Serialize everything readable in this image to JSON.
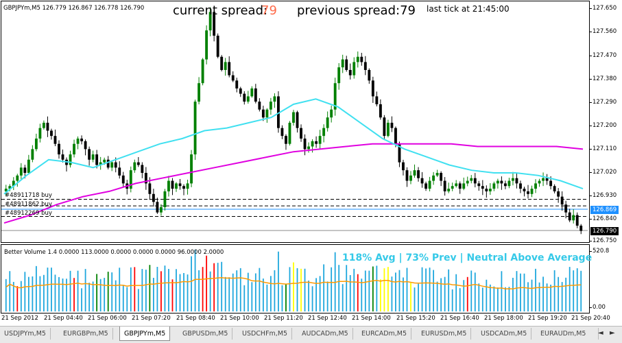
{
  "chart_header": {
    "symbol_line": "GBPJPYm,M5  126.779 126.867 126.778 126.790"
  },
  "spread": {
    "current_label": "current spread:",
    "current_value": "79",
    "previous_label": "previous spread:79",
    "last_tick": "last tick at 21:45:00"
  },
  "orders": [
    {
      "label": "#48911718 buy",
      "price": 126.91
    },
    {
      "label": "#48911862 buy",
      "price": 126.885
    },
    {
      "label": "#48912269 buy",
      "price": 126.845
    }
  ],
  "price_axis": {
    "ticks": [
      "127.650",
      "127.560",
      "127.470",
      "127.380",
      "127.290",
      "127.200",
      "127.110",
      "127.020",
      "126.930",
      "126.840",
      "126.750"
    ],
    "ask_box": "126.869",
    "bid_box": "126.790",
    "ask_color": "#1e90ff",
    "bid_color": "#000000"
  },
  "volume_panel": {
    "title": "Better Volume 1.4 0.0000 113.0000 0.0000 0.0000 0.0000 96.0000 2.0000",
    "stats": "118% Avg | 73% Prev | Neutral Above Average",
    "axis_top": "520.8",
    "axis_bottom": "0.00"
  },
  "time_axis": {
    "labels": [
      "21 Sep 2012",
      "21 Sep 04:40",
      "21 Sep 06:00",
      "21 Sep 07:20",
      "21 Sep 08:40",
      "21 Sep 10:00",
      "21 Sep 11:20",
      "21 Sep 12:40",
      "21 Sep 14:00",
      "21 Sep 15:20",
      "21 Sep 16:40",
      "21 Sep 18:00",
      "21 Sep 19:20",
      "21 Sep 20:40"
    ]
  },
  "tabs": {
    "items": [
      "USDJPYm,M5",
      "EURGBPm,M5",
      "GBPJPYm,M5",
      "GBPUSDm,M5",
      "USDCHFm,M5",
      "AUDCADm,M5",
      "EURCADm,M5",
      "EURUSDm,M5",
      "USDCADm,M5",
      "EURAUDm,M5"
    ],
    "active_index": 2,
    "scroll_left": "◄",
    "scroll_right": "►"
  },
  "colors": {
    "bull_candle": "#008000",
    "bear_candle": "#000000",
    "ma_fast": "#40e0f0",
    "ma_slow": "#e000e0",
    "vol_bar": "#1ea7dd",
    "vol_climax": "#ff0000",
    "vol_churn": "#008000",
    "vol_low": "#ffff00",
    "vol_avg": "#ff9a00"
  },
  "chart_data": {
    "type": "candlestick",
    "symbol": "GBPJPYm",
    "timeframe": "M5",
    "ylim": [
      126.75,
      127.66
    ],
    "close_series": [
      126.95,
      126.96,
      126.98,
      127.0,
      127.03,
      127.01,
      127.06,
      127.1,
      127.14,
      127.18,
      127.2,
      127.17,
      127.15,
      127.12,
      127.08,
      127.06,
      127.04,
      127.08,
      127.12,
      127.14,
      127.13,
      127.1,
      127.06,
      127.08,
      127.04,
      127.05,
      127.06,
      127.03,
      127.05,
      127.03,
      127.0,
      126.97,
      126.95,
      127.02,
      127.05,
      127.04,
      127.01,
      126.97,
      126.93,
      126.9,
      126.86,
      126.88,
      126.94,
      126.98,
      126.95,
      126.97,
      126.96,
      126.95,
      126.97,
      127.08,
      127.28,
      127.35,
      127.44,
      127.55,
      127.62,
      127.53,
      127.45,
      127.4,
      127.43,
      127.38,
      127.36,
      127.33,
      127.31,
      127.28,
      127.3,
      127.33,
      127.28,
      127.25,
      127.22,
      127.25,
      127.28,
      127.3,
      127.18,
      127.15,
      127.12,
      127.2,
      127.24,
      127.18,
      127.14,
      127.1,
      127.11,
      127.13,
      127.12,
      127.15,
      127.18,
      127.22,
      127.25,
      127.35,
      127.41,
      127.44,
      127.4,
      127.38,
      127.43,
      127.45,
      127.43,
      127.4,
      127.36,
      127.3,
      127.27,
      127.22,
      127.15,
      127.2,
      127.18,
      127.12,
      127.05,
      127.02,
      126.98,
      127.0,
      127.02,
      126.99,
      126.97,
      126.95,
      126.98,
      127.0,
      127.01,
      126.98,
      126.94,
      126.95,
      126.96,
      126.97,
      126.95,
      126.97,
      126.98,
      126.99,
      126.97,
      126.96,
      126.95,
      126.94,
      126.95,
      126.97,
      126.98,
      126.97,
      126.96,
      126.98,
      126.99,
      126.97,
      126.95,
      126.94,
      126.93,
      126.95,
      126.97,
      126.98,
      126.99,
      126.98,
      126.96,
      126.94,
      126.92,
      126.89,
      126.86,
      126.83,
      126.85,
      126.81,
      126.79
    ],
    "ma_fast_series": [
      126.93,
      127.0,
      127.06,
      127.05,
      127.03,
      127.06,
      127.09,
      127.12,
      127.14,
      127.17,
      127.18,
      127.2,
      127.22,
      127.27,
      127.29,
      127.26,
      127.2,
      127.14,
      127.1,
      127.07,
      127.04,
      127.02,
      127.01,
      127.01,
      127.0,
      126.98,
      126.95
    ],
    "ma_slow_series": [
      126.82,
      126.85,
      126.89,
      126.92,
      126.94,
      126.97,
      126.99,
      127.01,
      127.03,
      127.05,
      127.07,
      127.09,
      127.1,
      127.11,
      127.12,
      127.12,
      127.12,
      127.12,
      127.11,
      127.11,
      127.11,
      127.11,
      127.1
    ],
    "volume_max": 520.8
  }
}
